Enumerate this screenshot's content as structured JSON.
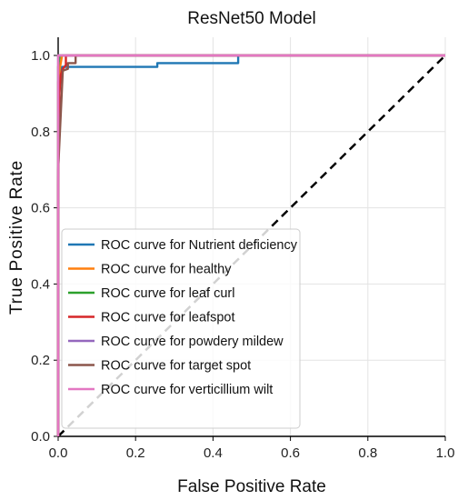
{
  "chart_data": {
    "type": "line",
    "title": "ResNet50 Model",
    "xlabel": "False Positive Rate",
    "ylabel": "True Positive Rate",
    "xlim": [
      0.0,
      1.0
    ],
    "ylim": [
      0.0,
      1.0
    ],
    "xticks": [
      "0.0",
      "0.2",
      "0.4",
      "0.6",
      "0.8",
      "1.0"
    ],
    "yticks": [
      "0.0",
      "0.2",
      "0.4",
      "0.6",
      "0.8",
      "1.0"
    ],
    "grid": true,
    "legend_position": "lower-left",
    "diagonal_reference": {
      "x": [
        0,
        1
      ],
      "y": [
        0,
        1
      ],
      "style": "dashed",
      "color": "#000000"
    },
    "series": [
      {
        "name": "ROC curve for Nutrient deficiency",
        "color": "#1f77b4",
        "x": [
          0,
          0,
          0.003,
          0.007,
          0.01,
          0.256,
          0.256,
          0.465,
          0.465,
          1.0
        ],
        "y": [
          0,
          0.66,
          0.9,
          0.96,
          0.97,
          0.97,
          0.98,
          0.98,
          1.0,
          1.0
        ]
      },
      {
        "name": "ROC curve for healthy",
        "color": "#ff7f0e",
        "x": [
          0,
          0,
          0.005,
          0.01,
          1.0
        ],
        "y": [
          0,
          0.93,
          0.97,
          1.0,
          1.0
        ]
      },
      {
        "name": "ROC curve for leaf curl",
        "color": "#2ca02c",
        "x": [
          0,
          0,
          0.004,
          1.0
        ],
        "y": [
          0,
          0.97,
          1.0,
          1.0
        ]
      },
      {
        "name": "ROC curve for leafspot",
        "color": "#d62728",
        "x": [
          0,
          0,
          0.003,
          0.007,
          0.012,
          0.02,
          0.02,
          1.0
        ],
        "y": [
          0,
          0.66,
          0.9,
          0.95,
          0.965,
          0.975,
          1.0,
          1.0
        ]
      },
      {
        "name": "ROC curve for powdery mildew",
        "color": "#9467bd",
        "x": [
          0,
          0,
          1.0
        ],
        "y": [
          0,
          1.0,
          1.0
        ]
      },
      {
        "name": "ROC curve for target spot",
        "color": "#8c564b",
        "x": [
          0,
          0,
          0.012,
          0.025,
          0.025,
          0.045,
          0.045,
          1.0
        ],
        "y": [
          0,
          0.7,
          0.96,
          0.965,
          0.98,
          0.98,
          1.0,
          1.0
        ]
      },
      {
        "name": "ROC curve for verticillium wilt",
        "color": "#e377c2",
        "x": [
          0,
          0,
          1.0
        ],
        "y": [
          0,
          1.0,
          1.0
        ]
      }
    ]
  }
}
